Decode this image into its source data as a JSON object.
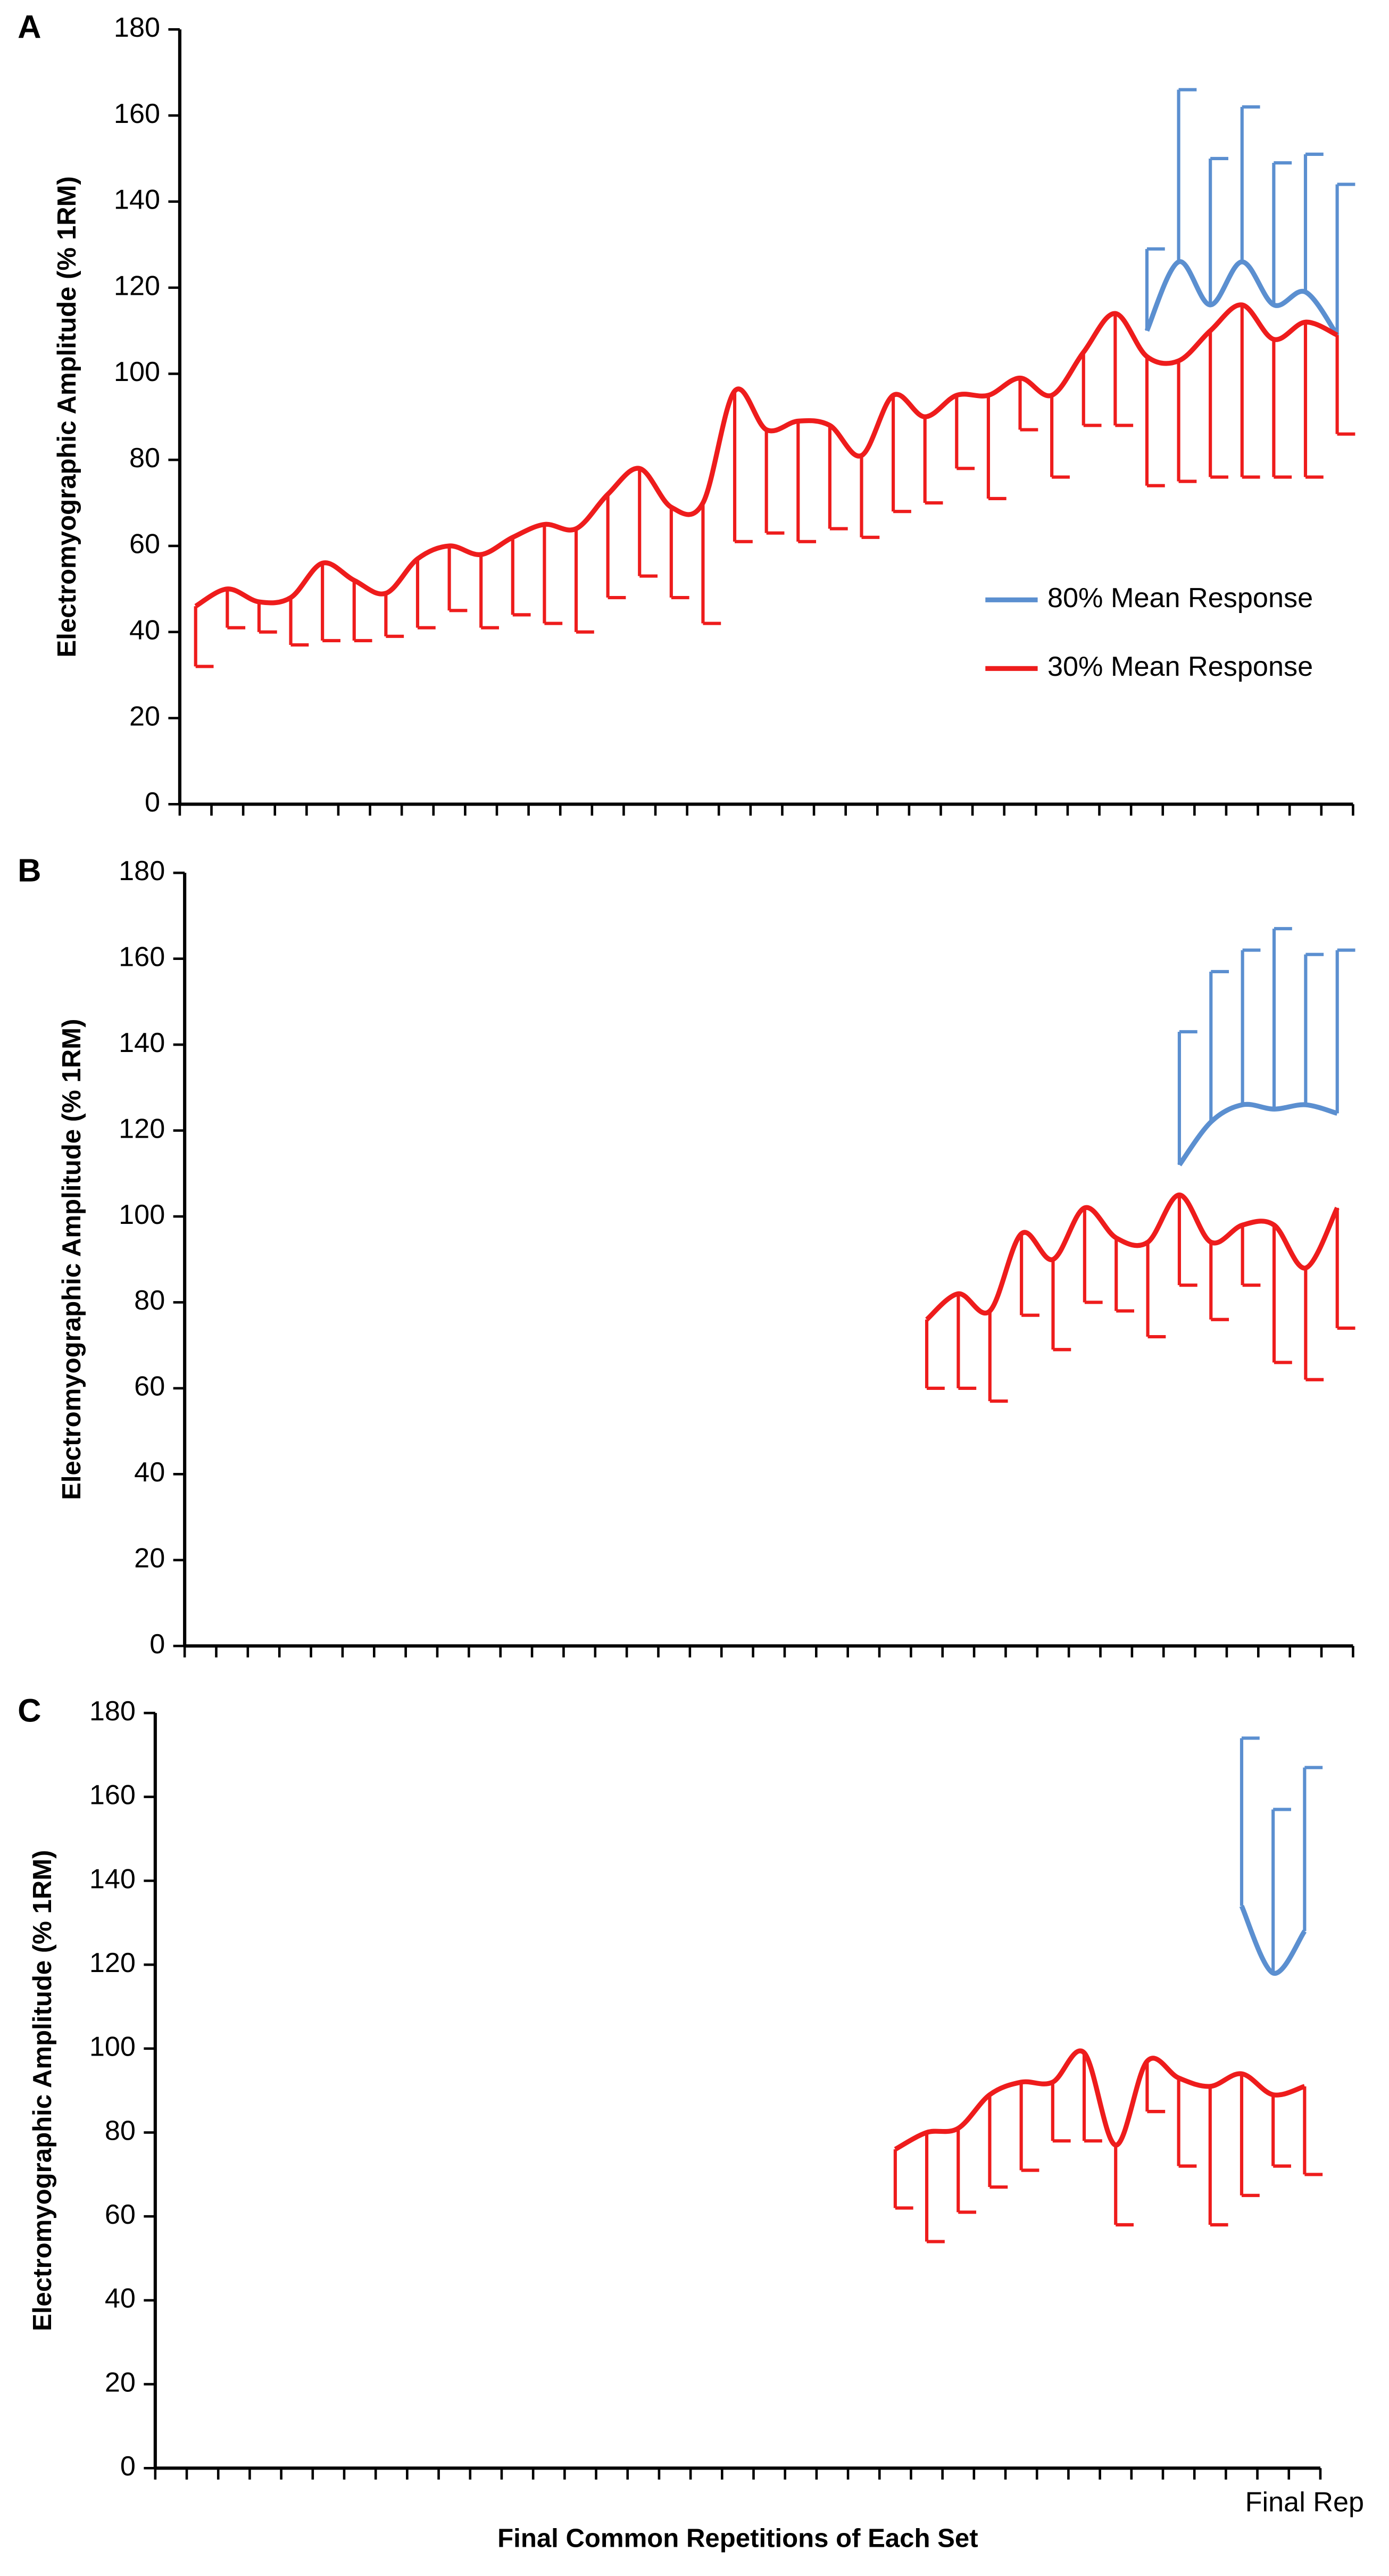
{
  "chart_data": [
    {
      "type": "line",
      "label": "A",
      "ylabel": "Electromyographic Amplitude (% 1RM)",
      "categories": [
        null,
        null,
        null,
        null,
        null,
        null,
        null,
        null,
        null,
        null,
        null,
        null,
        null,
        null,
        null,
        null,
        null,
        null,
        null,
        null,
        null,
        null,
        null,
        null,
        null,
        null,
        null,
        null,
        null,
        null,
        null,
        null,
        null,
        null,
        null,
        null,
        null
      ],
      "ylim": [
        0,
        180
      ],
      "yticks": [
        0,
        20,
        40,
        60,
        80,
        100,
        120,
        140,
        160,
        180
      ],
      "legend": "right",
      "series": [
        {
          "name": "80% Mean Response",
          "color": "#5b8fd0",
          "error_side": "upper",
          "values": [
            null,
            null,
            null,
            null,
            null,
            null,
            null,
            null,
            null,
            null,
            null,
            null,
            null,
            null,
            null,
            null,
            null,
            null,
            null,
            null,
            null,
            null,
            null,
            null,
            null,
            null,
            null,
            null,
            null,
            null,
            110,
            126,
            116,
            126,
            116,
            119,
            109
          ],
          "errors": [
            null,
            null,
            null,
            null,
            null,
            null,
            null,
            null,
            null,
            null,
            null,
            null,
            null,
            null,
            null,
            null,
            null,
            null,
            null,
            null,
            null,
            null,
            null,
            null,
            null,
            null,
            null,
            null,
            null,
            null,
            19,
            40,
            34,
            36,
            33,
            32,
            35
          ]
        },
        {
          "name": "30% Mean Response",
          "color": "#ee1c1c",
          "error_side": "lower",
          "values": [
            46,
            50,
            47,
            48,
            56,
            52,
            49,
            57,
            60,
            58,
            62,
            65,
            64,
            72,
            78,
            69,
            70,
            96,
            87,
            89,
            88,
            81,
            95,
            90,
            95,
            95,
            99,
            95,
            105,
            114,
            104,
            103,
            110,
            116,
            108,
            112,
            109
          ],
          "errors": [
            14,
            9,
            7,
            11,
            18,
            14,
            10,
            16,
            15,
            17,
            18,
            23,
            24,
            24,
            25,
            21,
            28,
            35,
            24,
            28,
            24,
            19,
            27,
            20,
            17,
            24,
            12,
            19,
            17,
            26,
            30,
            28,
            34,
            40,
            32,
            36,
            23
          ]
        }
      ]
    },
    {
      "type": "line",
      "label": "B",
      "ylabel": "Electromyographic Amplitude (% 1RM)",
      "categories": [
        null,
        null,
        null,
        null,
        null,
        null,
        null,
        null,
        null,
        null,
        null,
        null,
        null,
        null,
        null,
        null,
        null,
        null,
        null,
        null,
        null,
        null,
        null,
        null,
        null,
        null,
        null,
        null,
        null,
        null,
        null,
        null,
        null,
        null,
        null,
        null,
        null
      ],
      "ylim": [
        0,
        180
      ],
      "yticks": [
        0,
        20,
        40,
        60,
        80,
        100,
        120,
        140,
        160,
        180
      ],
      "series": [
        {
          "color": "#5b8fd0",
          "error_side": "upper",
          "values": [
            null,
            null,
            null,
            null,
            null,
            null,
            null,
            null,
            null,
            null,
            null,
            null,
            null,
            null,
            null,
            null,
            null,
            null,
            null,
            null,
            null,
            null,
            null,
            null,
            null,
            null,
            null,
            null,
            null,
            null,
            null,
            112,
            122,
            126,
            125,
            126,
            124
          ],
          "errors": [
            null,
            null,
            null,
            null,
            null,
            null,
            null,
            null,
            null,
            null,
            null,
            null,
            null,
            null,
            null,
            null,
            null,
            null,
            null,
            null,
            null,
            null,
            null,
            null,
            null,
            null,
            null,
            null,
            null,
            null,
            null,
            31,
            35,
            36,
            42,
            35,
            38
          ]
        },
        {
          "color": "#ee1c1c",
          "error_side": "lower",
          "values": [
            null,
            null,
            null,
            null,
            null,
            null,
            null,
            null,
            null,
            null,
            null,
            null,
            null,
            null,
            null,
            null,
            null,
            null,
            null,
            null,
            null,
            null,
            null,
            76,
            82,
            78,
            96,
            90,
            102,
            95,
            94,
            105,
            94,
            98,
            98,
            88,
            102
          ],
          "errors": [
            null,
            null,
            null,
            null,
            null,
            null,
            null,
            null,
            null,
            null,
            null,
            null,
            null,
            null,
            null,
            null,
            null,
            null,
            null,
            null,
            null,
            null,
            null,
            16,
            22,
            21,
            19,
            21,
            22,
            17,
            22,
            21,
            18,
            14,
            32,
            26,
            28
          ]
        }
      ]
    },
    {
      "type": "line",
      "label": "C",
      "ylabel": "Electromyographic Amplitude (% 1RM)",
      "xlabel": "Final Common Repetitions of Each Set",
      "categories": [
        null,
        null,
        null,
        null,
        null,
        null,
        null,
        null,
        null,
        null,
        null,
        null,
        null,
        null,
        null,
        null,
        null,
        null,
        null,
        null,
        null,
        null,
        null,
        null,
        null,
        null,
        null,
        null,
        null,
        null,
        null,
        null,
        null,
        null,
        null,
        null,
        "Final Rep"
      ],
      "ylim": [
        0,
        180
      ],
      "yticks": [
        0,
        20,
        40,
        60,
        80,
        100,
        120,
        140,
        160,
        180
      ],
      "series": [
        {
          "color": "#5b8fd0",
          "error_side": "upper",
          "values": [
            null,
            null,
            null,
            null,
            null,
            null,
            null,
            null,
            null,
            null,
            null,
            null,
            null,
            null,
            null,
            null,
            null,
            null,
            null,
            null,
            null,
            null,
            null,
            null,
            null,
            null,
            null,
            null,
            null,
            null,
            null,
            null,
            null,
            null,
            134,
            118,
            128
          ],
          "errors": [
            null,
            null,
            null,
            null,
            null,
            null,
            null,
            null,
            null,
            null,
            null,
            null,
            null,
            null,
            null,
            null,
            null,
            null,
            null,
            null,
            null,
            null,
            null,
            null,
            null,
            null,
            null,
            null,
            null,
            null,
            null,
            null,
            null,
            null,
            40,
            39,
            39
          ]
        },
        {
          "color": "#ee1c1c",
          "error_side": "lower",
          "values": [
            null,
            null,
            null,
            null,
            null,
            null,
            null,
            null,
            null,
            null,
            null,
            null,
            null,
            null,
            null,
            null,
            null,
            null,
            null,
            null,
            null,
            null,
            null,
            76,
            80,
            81,
            89,
            92,
            92,
            99,
            77,
            97,
            93,
            91,
            94,
            89,
            91
          ],
          "errors": [
            null,
            null,
            null,
            null,
            null,
            null,
            null,
            null,
            null,
            null,
            null,
            null,
            null,
            null,
            null,
            null,
            null,
            null,
            null,
            null,
            null,
            null,
            null,
            14,
            26,
            20,
            22,
            21,
            14,
            21,
            19,
            12,
            21,
            33,
            29,
            17,
            21
          ]
        }
      ]
    }
  ]
}
